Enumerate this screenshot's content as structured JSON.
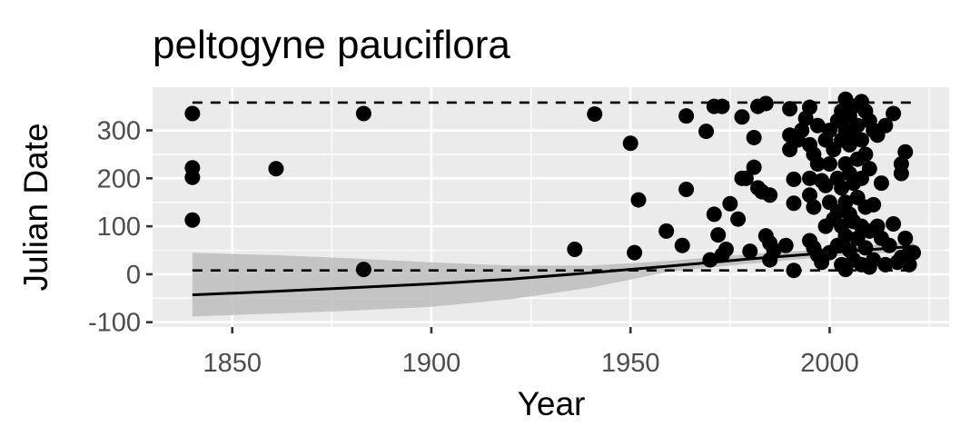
{
  "chart_data": {
    "type": "scatter",
    "title": "peltogyne pauciflora",
    "xlabel": "Year",
    "ylabel": "Julian Date",
    "xlim": [
      1830,
      2030
    ],
    "ylim": [
      -110,
      390
    ],
    "x_ticks": [
      1850,
      1900,
      1950,
      2000
    ],
    "y_ticks": [
      -100,
      0,
      100,
      200,
      300
    ],
    "grid": true,
    "legend": "none",
    "colors": {
      "panel": "#ebebeb",
      "grid": "#ffffff",
      "points": "#000000",
      "band": "#bdbdbd",
      "axis_ticks": "#333333",
      "tick_labels": "#4d4d4d"
    },
    "points": [
      [
        1840,
        335
      ],
      [
        1840,
        222
      ],
      [
        1840,
        202
      ],
      [
        1840,
        113
      ],
      [
        1861,
        220
      ],
      [
        1883,
        335
      ],
      [
        1883,
        10
      ],
      [
        1936,
        52
      ],
      [
        1941,
        334
      ],
      [
        1950,
        273
      ],
      [
        1951,
        45
      ],
      [
        1952,
        155
      ],
      [
        1959,
        90
      ],
      [
        1963,
        60
      ],
      [
        1964,
        330
      ],
      [
        1964,
        177
      ],
      [
        1969,
        298
      ],
      [
        1970,
        30
      ],
      [
        1971,
        350
      ],
      [
        1971,
        125
      ],
      [
        1972,
        82
      ],
      [
        1973,
        350
      ],
      [
        1973,
        40
      ],
      [
        1974,
        52
      ],
      [
        1975,
        147
      ],
      [
        1977,
        115
      ],
      [
        1978,
        328
      ],
      [
        1978,
        200
      ],
      [
        1979,
        200
      ],
      [
        1980,
        48
      ],
      [
        1981,
        285
      ],
      [
        1981,
        223
      ],
      [
        1982,
        350
      ],
      [
        1982,
        180
      ],
      [
        1983,
        172
      ],
      [
        1984,
        356
      ],
      [
        1984,
        80
      ],
      [
        1985,
        165
      ],
      [
        1985,
        65
      ],
      [
        1985,
        30
      ],
      [
        1986,
        50
      ],
      [
        1989,
        60
      ],
      [
        1990,
        345
      ],
      [
        1990,
        290
      ],
      [
        1990,
        260
      ],
      [
        1991,
        198
      ],
      [
        1991,
        148
      ],
      [
        1991,
        8
      ],
      [
        1992,
        280
      ],
      [
        1993,
        300
      ],
      [
        1994,
        325
      ],
      [
        1995,
        348
      ],
      [
        1995,
        270
      ],
      [
        1995,
        200
      ],
      [
        1995,
        165
      ],
      [
        1995,
        70
      ],
      [
        1996,
        250
      ],
      [
        1996,
        140
      ],
      [
        1996,
        55
      ],
      [
        1997,
        310
      ],
      [
        1997,
        230
      ],
      [
        1997,
        40
      ],
      [
        1998,
        195
      ],
      [
        1998,
        25
      ],
      [
        1999,
        280
      ],
      [
        1999,
        185
      ],
      [
        1999,
        100
      ],
      [
        2000,
        300
      ],
      [
        2000,
        230
      ],
      [
        2000,
        150
      ],
      [
        2000,
        45
      ],
      [
        2001,
        260
      ],
      [
        2001,
        115
      ],
      [
        2002,
        320
      ],
      [
        2002,
        200
      ],
      [
        2002,
        130
      ],
      [
        2002,
        60
      ],
      [
        2003,
        340
      ],
      [
        2003,
        280
      ],
      [
        2003,
        180
      ],
      [
        2003,
        100
      ],
      [
        2003,
        20
      ],
      [
        2004,
        365
      ],
      [
        2004,
        300
      ],
      [
        2004,
        230
      ],
      [
        2004,
        150
      ],
      [
        2004,
        80
      ],
      [
        2004,
        10
      ],
      [
        2005,
        330
      ],
      [
        2005,
        270
      ],
      [
        2005,
        210
      ],
      [
        2005,
        125
      ],
      [
        2005,
        50
      ],
      [
        2006,
        350
      ],
      [
        2006,
        290
      ],
      [
        2006,
        190
      ],
      [
        2006,
        110
      ],
      [
        2006,
        30
      ],
      [
        2007,
        310
      ],
      [
        2007,
        240
      ],
      [
        2007,
        160
      ],
      [
        2007,
        75
      ],
      [
        2008,
        360
      ],
      [
        2008,
        280
      ],
      [
        2008,
        200
      ],
      [
        2008,
        100
      ],
      [
        2008,
        20
      ],
      [
        2009,
        340
      ],
      [
        2009,
        250
      ],
      [
        2009,
        140
      ],
      [
        2009,
        55
      ],
      [
        2010,
        320
      ],
      [
        2010,
        220
      ],
      [
        2010,
        90
      ],
      [
        2010,
        15
      ],
      [
        2011,
        300
      ],
      [
        2011,
        145
      ],
      [
        2011,
        30
      ],
      [
        2012,
        290
      ],
      [
        2012,
        100
      ],
      [
        2013,
        190
      ],
      [
        2013,
        75
      ],
      [
        2014,
        310
      ],
      [
        2014,
        20
      ],
      [
        2015,
        60
      ],
      [
        2016,
        335
      ],
      [
        2016,
        105
      ],
      [
        2017,
        25
      ],
      [
        2018,
        230
      ],
      [
        2018,
        210
      ],
      [
        2018,
        35
      ],
      [
        2019,
        255
      ],
      [
        2019,
        75
      ],
      [
        2020,
        45
      ],
      [
        2020,
        20
      ],
      [
        2021,
        45
      ]
    ],
    "dashed_lines": [
      {
        "x": [
          1840,
          2021
        ],
        "y": [
          358,
          358
        ]
      },
      {
        "x": [
          1840,
          2021
        ],
        "y": [
          8,
          8
        ]
      }
    ],
    "trend_line": {
      "x": [
        1840,
        1860,
        1880,
        1900,
        1920,
        1940,
        1960,
        1980,
        2000,
        2021
      ],
      "y": [
        -43,
        -36,
        -28,
        -20,
        -10,
        3,
        17,
        32,
        45,
        58
      ]
    },
    "confidence_band": {
      "x": [
        1840,
        1860,
        1880,
        1900,
        1920,
        1940,
        1960,
        1980,
        2000,
        2021
      ],
      "upper": [
        45,
        40,
        33,
        25,
        18,
        18,
        28,
        42,
        53,
        68
      ],
      "lower": [
        -88,
        -82,
        -76,
        -68,
        -52,
        -28,
        6,
        22,
        37,
        48
      ]
    }
  }
}
